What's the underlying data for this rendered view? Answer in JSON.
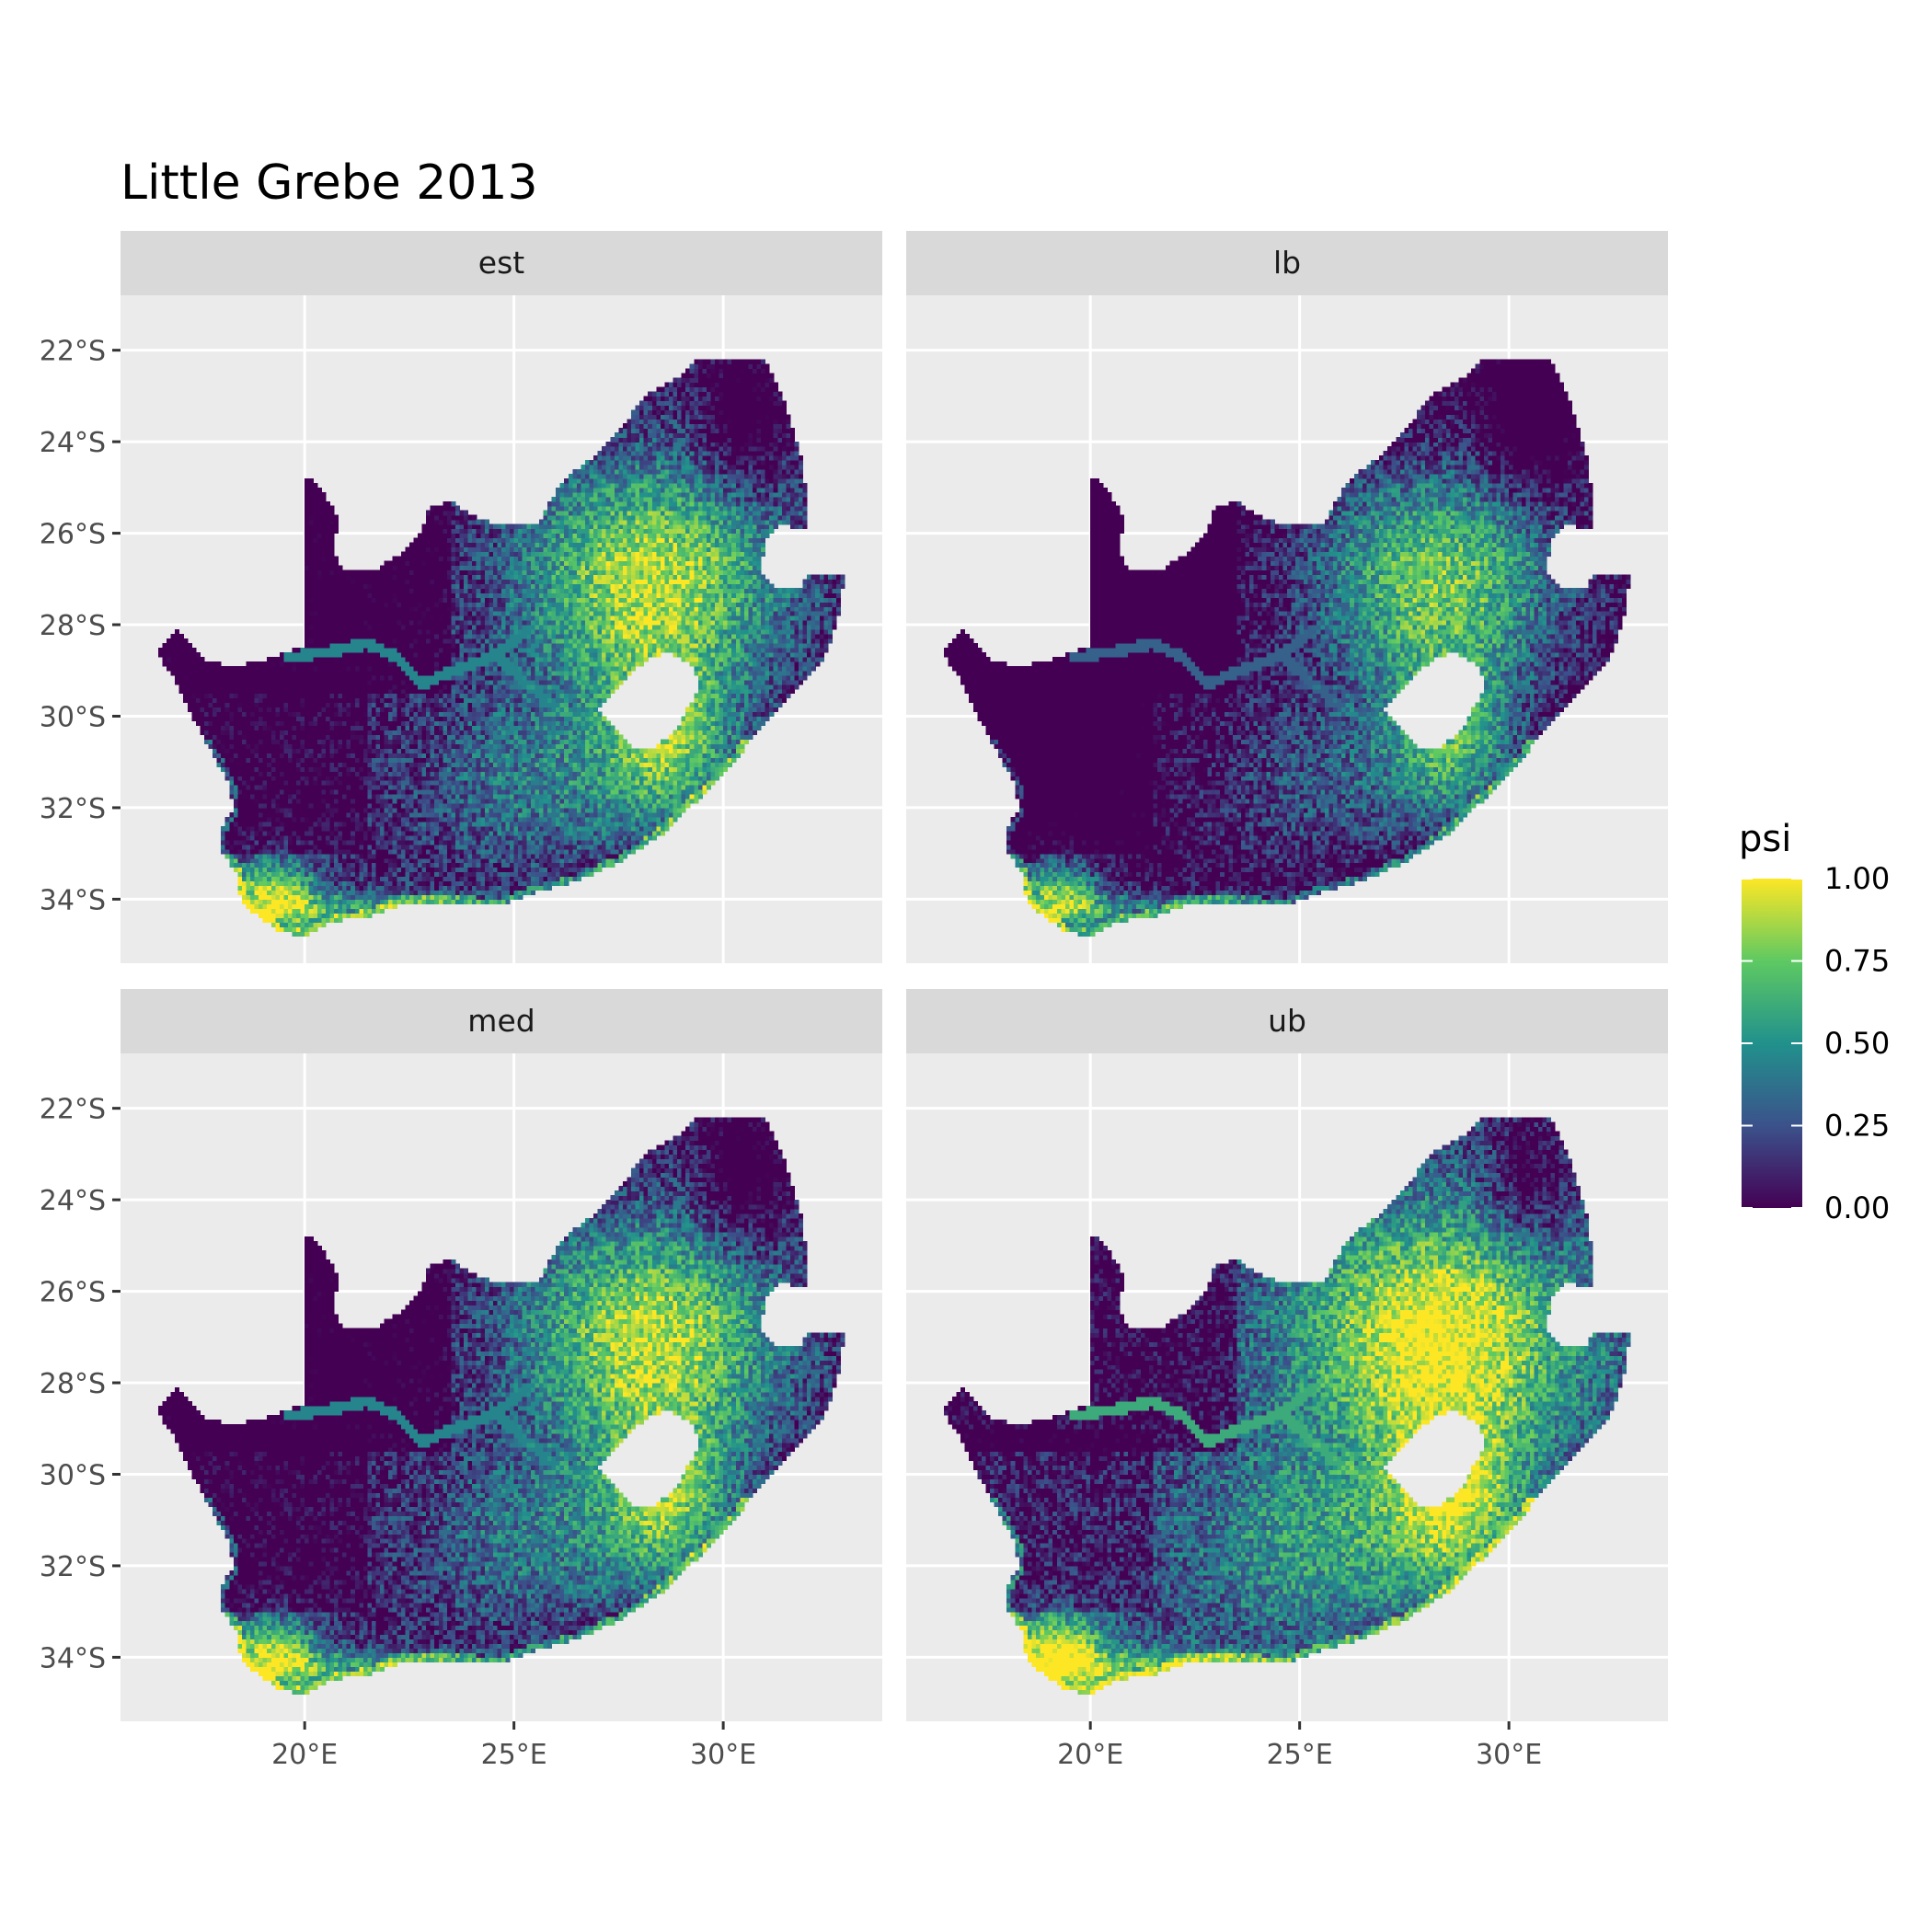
{
  "title": "Little Grebe 2013",
  "panels": [
    {
      "label": "est",
      "mean_shift": 0.0
    },
    {
      "label": "lb",
      "mean_shift": -0.14
    },
    {
      "label": "med",
      "mean_shift": 0.0
    },
    {
      "label": "ub",
      "mean_shift": 0.16
    }
  ],
  "axes": {
    "x_ticks": [
      {
        "value": 20,
        "label": "20°E"
      },
      {
        "value": 25,
        "label": "25°E"
      },
      {
        "value": 30,
        "label": "30°E"
      }
    ],
    "y_ticks": [
      {
        "value": -22,
        "label": "22°S"
      },
      {
        "value": -24,
        "label": "24°S"
      },
      {
        "value": -26,
        "label": "26°S"
      },
      {
        "value": -28,
        "label": "28°S"
      },
      {
        "value": -30,
        "label": "30°S"
      },
      {
        "value": -32,
        "label": "32°S"
      },
      {
        "value": -34,
        "label": "34°S"
      }
    ],
    "x_range": [
      15.6,
      33.8
    ],
    "y_range": [
      -35.4,
      -20.8
    ]
  },
  "legend": {
    "title": "psi",
    "ticks": [
      {
        "value": 1.0,
        "label": "1.00"
      },
      {
        "value": 0.75,
        "label": "0.75"
      },
      {
        "value": 0.5,
        "label": "0.50"
      },
      {
        "value": 0.25,
        "label": "0.25"
      },
      {
        "value": 0.0,
        "label": "0.00"
      }
    ],
    "colormap": "viridis",
    "stops": [
      "#440154",
      "#3b528b",
      "#21918c",
      "#5ec962",
      "#fde725"
    ]
  },
  "colors": {
    "panel_bg": "#ebebeb",
    "strip_bg": "#d9d9d9",
    "grid": "#ffffff",
    "text": "#000000",
    "axis_text": "#4d4d4d"
  },
  "boundary": {
    "outline": [
      [
        16.45,
        -28.6
      ],
      [
        16.9,
        -28.1
      ],
      [
        17.3,
        -28.4
      ],
      [
        17.6,
        -28.8
      ],
      [
        18.4,
        -28.9
      ],
      [
        19.3,
        -28.7
      ],
      [
        19.99,
        -28.45
      ],
      [
        19.99,
        -24.75
      ],
      [
        20.4,
        -25.0
      ],
      [
        20.8,
        -25.7
      ],
      [
        20.7,
        -26.4
      ],
      [
        20.9,
        -26.8
      ],
      [
        21.7,
        -26.8
      ],
      [
        22.5,
        -26.3
      ],
      [
        22.8,
        -25.9
      ],
      [
        23.0,
        -25.4
      ],
      [
        23.5,
        -25.3
      ],
      [
        24.0,
        -25.6
      ],
      [
        24.5,
        -25.8
      ],
      [
        25.0,
        -25.8
      ],
      [
        25.6,
        -25.8
      ],
      [
        26.1,
        -24.9
      ],
      [
        26.5,
        -24.6
      ],
      [
        27.1,
        -24.2
      ],
      [
        27.5,
        -23.8
      ],
      [
        28.1,
        -23.0
      ],
      [
        28.9,
        -22.6
      ],
      [
        29.4,
        -22.15
      ],
      [
        30.0,
        -22.2
      ],
      [
        31.0,
        -22.2
      ],
      [
        31.5,
        -23.2
      ],
      [
        31.9,
        -24.5
      ],
      [
        32.0,
        -25.3
      ],
      [
        31.95,
        -25.95
      ],
      [
        31.4,
        -25.8
      ],
      [
        31.0,
        -26.2
      ],
      [
        30.9,
        -26.8
      ],
      [
        31.3,
        -27.25
      ],
      [
        31.9,
        -27.2
      ],
      [
        32.0,
        -26.85
      ],
      [
        32.9,
        -26.85
      ],
      [
        32.8,
        -27.6
      ],
      [
        32.6,
        -28.3
      ],
      [
        32.3,
        -28.9
      ],
      [
        31.8,
        -29.4
      ],
      [
        31.2,
        -29.9
      ],
      [
        30.5,
        -30.7
      ],
      [
        30.0,
        -31.3
      ],
      [
        29.3,
        -31.9
      ],
      [
        28.5,
        -32.6
      ],
      [
        27.5,
        -33.2
      ],
      [
        26.5,
        -33.6
      ],
      [
        25.7,
        -33.8
      ],
      [
        25.0,
        -34.0
      ],
      [
        24.6,
        -34.15
      ],
      [
        23.6,
        -34.05
      ],
      [
        22.5,
        -34.05
      ],
      [
        21.6,
        -34.35
      ],
      [
        20.6,
        -34.5
      ],
      [
        20.0,
        -34.8
      ],
      [
        19.4,
        -34.7
      ],
      [
        18.8,
        -34.3
      ],
      [
        18.5,
        -34.1
      ],
      [
        18.35,
        -33.4
      ],
      [
        18.0,
        -32.9
      ],
      [
        17.95,
        -32.5
      ],
      [
        18.3,
        -32.0
      ],
      [
        18.2,
        -31.5
      ],
      [
        17.8,
        -30.8
      ],
      [
        17.3,
        -30.0
      ],
      [
        16.9,
        -29.2
      ],
      [
        16.45,
        -28.6
      ]
    ],
    "hole": [
      [
        27.0,
        -29.8
      ],
      [
        27.4,
        -29.5
      ],
      [
        27.7,
        -29.1
      ],
      [
        28.2,
        -28.75
      ],
      [
        28.7,
        -28.6
      ],
      [
        29.3,
        -28.9
      ],
      [
        29.45,
        -29.4
      ],
      [
        29.1,
        -29.9
      ],
      [
        29.0,
        -30.2
      ],
      [
        28.7,
        -30.45
      ],
      [
        28.3,
        -30.7
      ],
      [
        27.8,
        -30.65
      ],
      [
        27.4,
        -30.3
      ],
      [
        27.0,
        -29.8
      ]
    ]
  }
}
